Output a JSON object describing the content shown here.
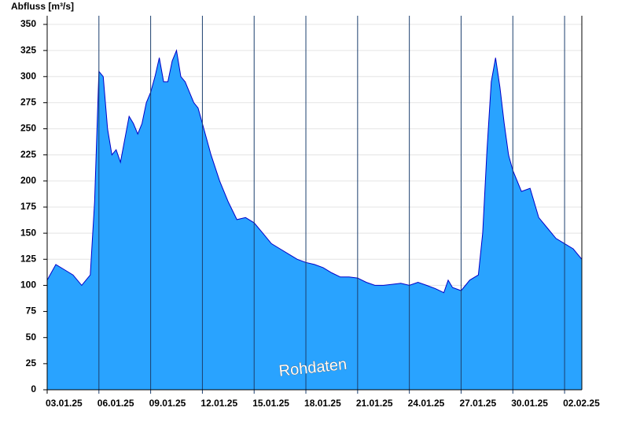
{
  "chart_data": {
    "type": "area",
    "y_label": "Abfluss [m³/s]",
    "watermark": "Rohdaten",
    "x": [
      0,
      0.5,
      1,
      1.5,
      2,
      2.5,
      2.75,
      3,
      3.25,
      3.5,
      3.75,
      4,
      4.25,
      4.5,
      4.75,
      5,
      5.25,
      5.5,
      5.75,
      6,
      6.25,
      6.5,
      6.75,
      7,
      7.25,
      7.5,
      7.75,
      8,
      8.25,
      8.5,
      8.75,
      9,
      9.5,
      10,
      10.5,
      11,
      11.5,
      12,
      12.5,
      13,
      13.5,
      14,
      14.5,
      15,
      15.5,
      16,
      16.5,
      17,
      17.5,
      18,
      18.5,
      19,
      19.5,
      20,
      20.5,
      21,
      21.5,
      22,
      22.5,
      23,
      23.25,
      23.5,
      24,
      24.5,
      25,
      25.25,
      25.5,
      25.75,
      26,
      26.25,
      26.5,
      26.75,
      27,
      27.5,
      28,
      28.5,
      29,
      29.5,
      30,
      30.5,
      31
    ],
    "series": [
      {
        "color": "#29a3ff",
        "line_color": "#0000c8",
        "values": [
          105,
          120,
          115,
          110,
          100,
          110,
          180,
          305,
          300,
          250,
          225,
          230,
          218,
          240,
          262,
          255,
          245,
          255,
          275,
          285,
          300,
          318,
          295,
          295,
          315,
          325,
          300,
          295,
          285,
          275,
          270,
          255,
          225,
          200,
          180,
          163,
          165,
          160,
          150,
          140,
          135,
          130,
          125,
          122,
          120,
          117,
          112,
          108,
          108,
          107,
          103,
          100,
          100,
          101,
          102,
          100,
          103,
          100,
          97,
          93,
          105,
          98,
          95,
          105,
          110,
          150,
          230,
          295,
          318,
          290,
          255,
          225,
          210,
          190,
          193,
          165,
          155,
          145,
          140,
          135,
          125
        ]
      }
    ],
    "xlim": [
      0,
      31
    ],
    "xticks": [
      {
        "value": 0,
        "label": "03.01.25"
      },
      {
        "value": 3,
        "label": "06.01.25"
      },
      {
        "value": 6,
        "label": "09.01.25"
      },
      {
        "value": 9,
        "label": "12.01.25"
      },
      {
        "value": 12,
        "label": "15.01.25"
      },
      {
        "value": 15,
        "label": "18.01.25"
      },
      {
        "value": 18,
        "label": "21.01.25"
      },
      {
        "value": 21,
        "label": "24.01.25"
      },
      {
        "value": 24,
        "label": "27.01.25"
      },
      {
        "value": 27,
        "label": "30.01.25"
      },
      {
        "value": 30,
        "label": "02.02.25"
      }
    ],
    "ylim": [
      0,
      350
    ],
    "yticks": [
      0,
      25,
      50,
      75,
      100,
      125,
      150,
      175,
      200,
      225,
      250,
      275,
      300,
      325,
      350
    ],
    "grid": true
  }
}
